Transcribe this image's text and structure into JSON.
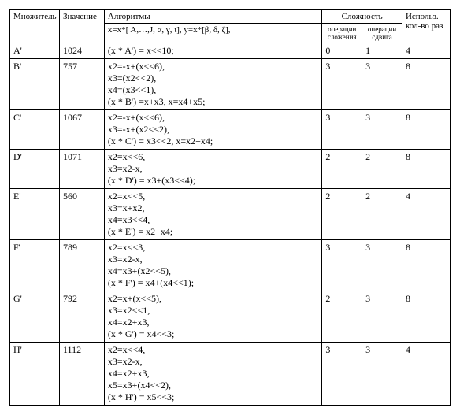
{
  "headers": {
    "mult": "Множитель",
    "val": "Значение",
    "alg_title": "Алгоритмы",
    "alg_sub": "x=x*[ A,…,J, α, γ, ι],   y=x*[β, δ, ζ],",
    "complexity": "Сложность",
    "op_add": "операции сложения",
    "op_shift": "операции сдвига",
    "use": "Использ. кол-во раз"
  },
  "rows": [
    {
      "mult": "A'",
      "val": "1024",
      "alg": [
        "(x * A') = x<<10;"
      ],
      "add": "0",
      "shift": "1",
      "use": "4"
    },
    {
      "mult": "B'",
      "val": "757",
      "alg": [
        "x2=-x+(x<<6),",
        "x3=(x2<<2),",
        "x4=(x3<<1),",
        "(x * B') =x+x3, x=x4+x5;"
      ],
      "add": "3",
      "shift": "3",
      "use": "8"
    },
    {
      "mult": "C'",
      "val": "1067",
      "alg": [
        "x2=-x+(x<<6),",
        "x3=-x+(x2<<2),",
        "(x * C') = x3<<2, x=x2+x4;"
      ],
      "add": "3",
      "shift": "3",
      "use": "8"
    },
    {
      "mult": "D'",
      "val": "1071",
      "alg": [
        "x2=x<<6,",
        "x3=x2-x,",
        "(x * D') = x3+(x3<<4);"
      ],
      "add": "2",
      "shift": "2",
      "use": "8"
    },
    {
      "mult": "E'",
      "val": "560",
      "alg": [
        "x2=x<<5,",
        "x3=x+x2,",
        "x4=x3<<4,",
        "(x * E') = x2+x4;"
      ],
      "add": "2",
      "shift": "2",
      "use": "4"
    },
    {
      "mult": "F'",
      "val": "789",
      "alg": [
        "x2=x<<3,",
        "x3=x2-x,",
        "x4=x3+(x2<<5),",
        "(x * F') = x4+(x4<<1);"
      ],
      "add": "3",
      "shift": "3",
      "use": "8"
    },
    {
      "mult": "G'",
      "val": "792",
      "alg": [
        "x2=x+(x<<5),",
        "x3=x2<<1,",
        "x4=x2+x3,",
        "(x * G') = x4<<3;"
      ],
      "add": "2",
      "shift": "3",
      "use": "8"
    },
    {
      "mult": "H'",
      "val": "1112",
      "alg": [
        "x2=x<<4,",
        "x3=x2-x,",
        "x4=x2+x3,",
        "x5=x3+(x4<<2),",
        "(x * H') = x5<<3;"
      ],
      "add": "3",
      "shift": "3",
      "use": "4"
    }
  ]
}
